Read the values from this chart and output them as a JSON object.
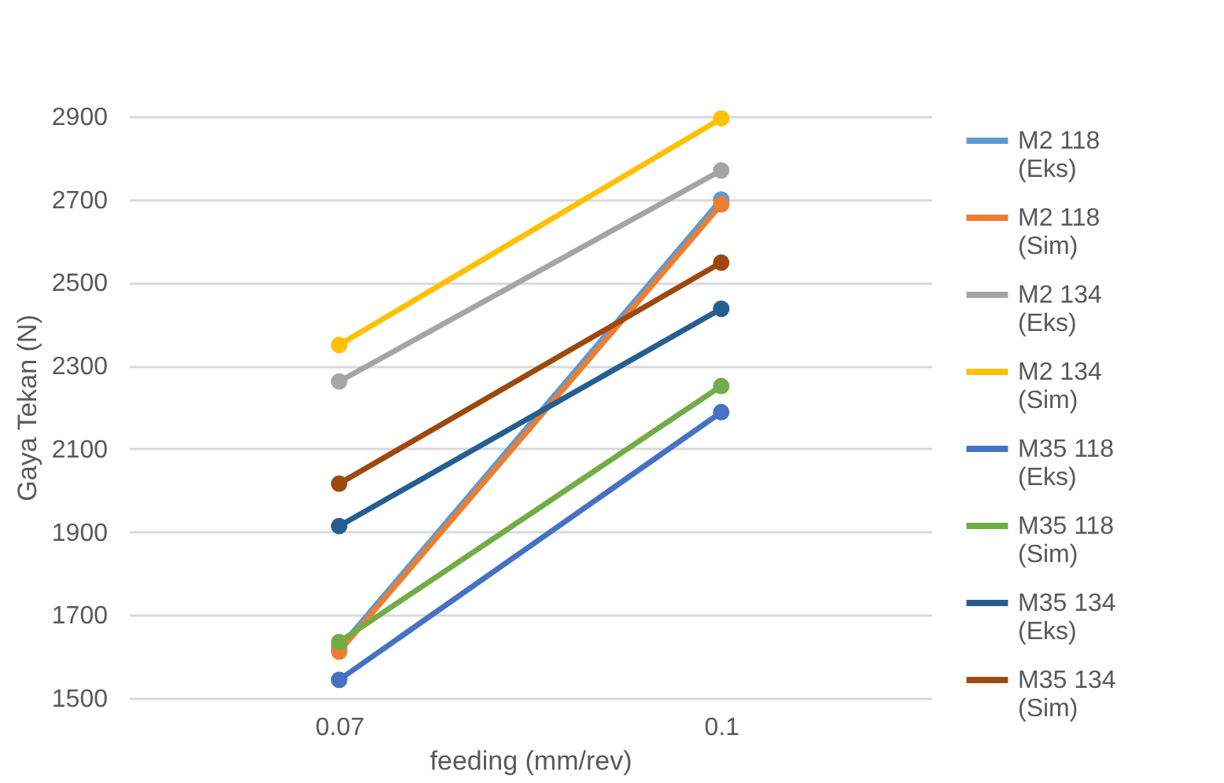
{
  "chart_data": {
    "type": "line",
    "xlabel": "feeding (mm/rev)",
    "ylabel": "Gaya Tekan (N)",
    "categories": [
      "0.07",
      "0.1"
    ],
    "series": [
      {
        "name": "M2 118 (Eks)",
        "color": "#5b9bd5",
        "values": [
          1620,
          2700
        ]
      },
      {
        "name": "M2 118 (Sim)",
        "color": "#ed7d31",
        "values": [
          1612,
          2688
        ]
      },
      {
        "name": "M2 134 (Eks)",
        "color": "#a5a5a5",
        "values": [
          2262,
          2770
        ]
      },
      {
        "name": "M2 134 (Sim)",
        "color": "#ffc000",
        "values": [
          2350,
          2895
        ]
      },
      {
        "name": "M35 118 (Eks)",
        "color": "#4472c4",
        "values": [
          1544,
          2188
        ]
      },
      {
        "name": "M35 118 (Sim)",
        "color": "#70ad47",
        "values": [
          1635,
          2251
        ]
      },
      {
        "name": "M35 134 (Eks)",
        "color": "#255e91",
        "values": [
          1914,
          2437
        ]
      },
      {
        "name": "M35 134 (Sim)",
        "color": "#9e480e",
        "values": [
          2016,
          2548
        ]
      }
    ],
    "ylim": [
      1500,
      2900
    ],
    "yticks": [
      1500,
      1700,
      1900,
      2100,
      2300,
      2500,
      2700,
      2900
    ],
    "grid": "y",
    "legend": "right",
    "marker": "circle",
    "line_style": "solid"
  }
}
